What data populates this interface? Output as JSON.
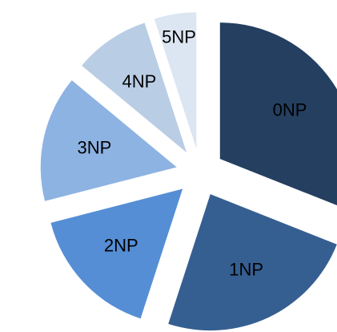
{
  "chart_data": {
    "type": "pie",
    "categories": [
      "0NP",
      "1NP",
      "2NP",
      "3NP",
      "4NP",
      "5NP"
    ],
    "values": [
      31,
      24,
      16,
      15,
      9,
      5
    ],
    "colors": [
      "#243f60",
      "#365f91",
      "#558ed5",
      "#8db3e2",
      "#b9cde5",
      "#dce6f2"
    ],
    "exploded": true
  }
}
